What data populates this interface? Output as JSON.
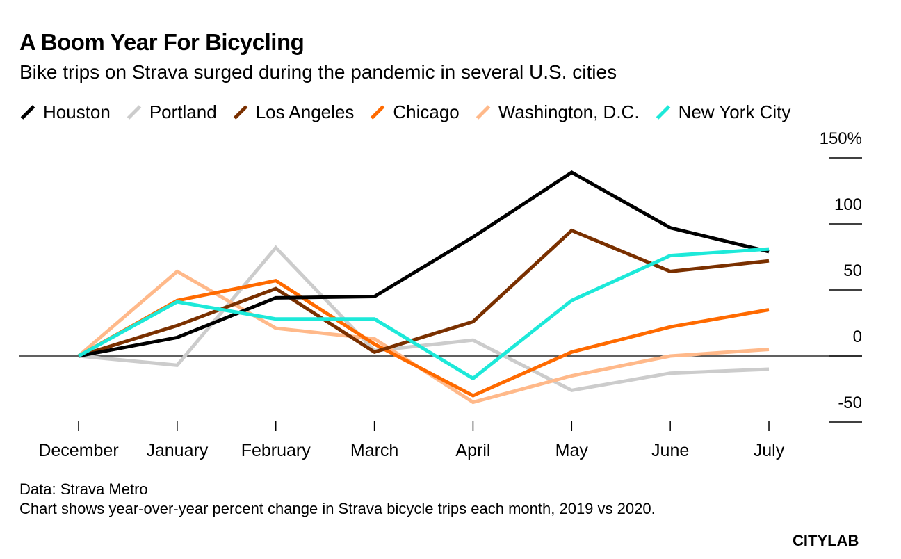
{
  "chart_data": {
    "type": "line",
    "title": "A Boom Year For Bicycling",
    "subtitle": "Bike trips on Strava surged during the pandemic in several U.S. cities",
    "categories": [
      "December",
      "January",
      "February",
      "March",
      "April",
      "May",
      "June",
      "July"
    ],
    "ylim": [
      -50,
      150
    ],
    "yticks": [
      -50,
      0,
      50,
      100,
      150
    ],
    "ytick_labels": [
      "-50",
      "0",
      "50",
      "100",
      "150%"
    ],
    "grid": false,
    "legend_position": "top",
    "series": [
      {
        "name": "Houston",
        "color": "#000000",
        "values": [
          0,
          14,
          44,
          45,
          90,
          139,
          97,
          79
        ]
      },
      {
        "name": "Portland",
        "color": "#cccccc",
        "values": [
          0,
          -7,
          82,
          4,
          12,
          -26,
          -13,
          -10
        ]
      },
      {
        "name": "Los Angeles",
        "color": "#7a3000",
        "values": [
          0,
          23,
          51,
          3,
          26,
          95,
          64,
          72
        ]
      },
      {
        "name": "Chicago",
        "color": "#ff6a00",
        "values": [
          0,
          42,
          57,
          9,
          -30,
          3,
          22,
          35
        ]
      },
      {
        "name": "Washington, D.C.",
        "color": "#ffb98a",
        "values": [
          0,
          64,
          21,
          13,
          -35,
          -15,
          0,
          5
        ]
      },
      {
        "name": "New York City",
        "color": "#1de9d9",
        "values": [
          0,
          41,
          28,
          28,
          -17,
          42,
          76,
          81
        ]
      }
    ],
    "source": "Data: Strava Metro",
    "note": "Chart shows year-over-year percent change in Strava bicycle trips each month, 2019 vs 2020.",
    "logo": "CITYLAB"
  }
}
